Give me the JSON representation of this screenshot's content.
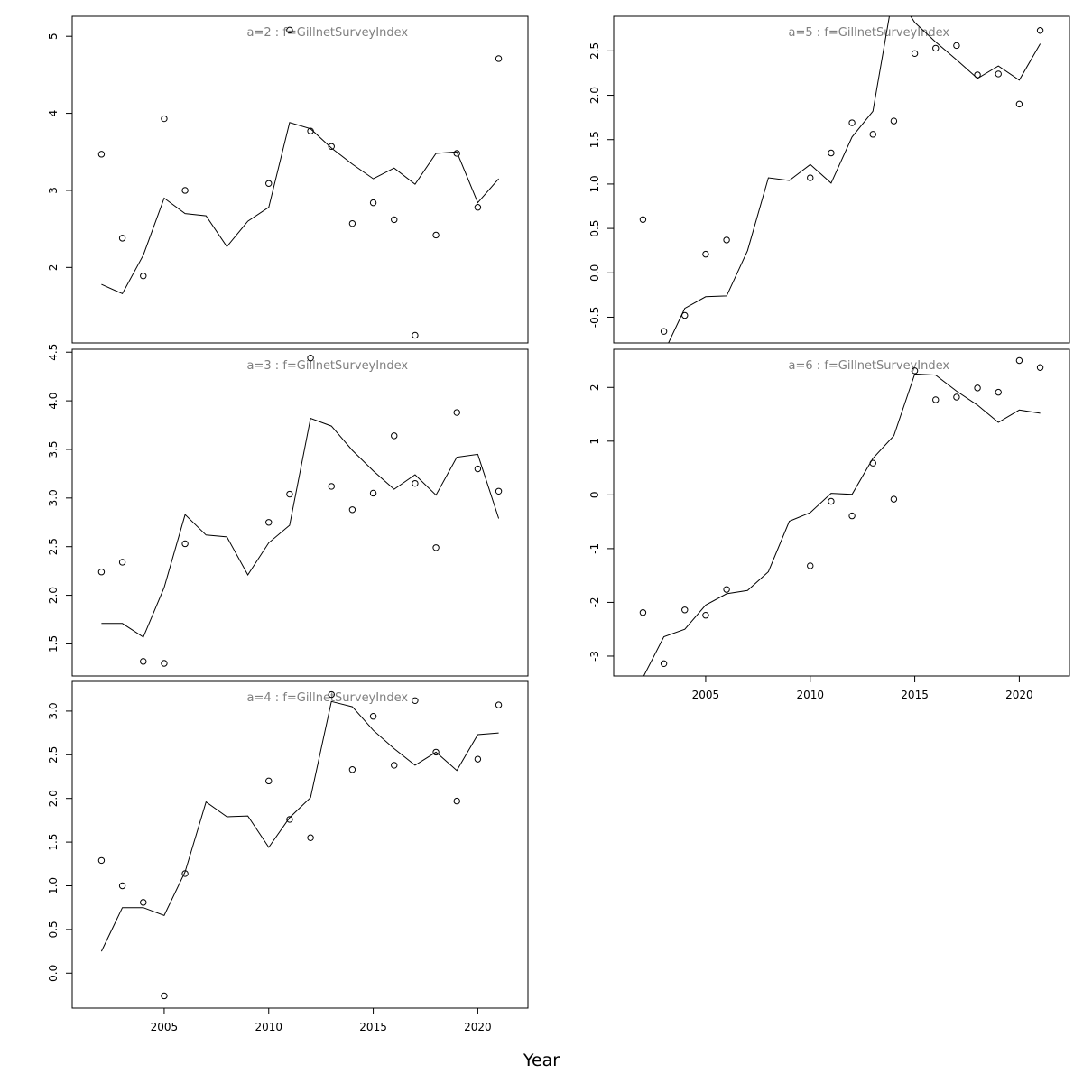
{
  "figure": {
    "xlabel": "Year"
  },
  "chart_data": [
    {
      "type": "scatter",
      "title": "a=2 : f=GillnetSurveyIndex",
      "xlim": [
        2000.6,
        2022.4
      ],
      "ylim": [
        1.02,
        5.26
      ],
      "yticks": [
        2,
        3,
        4,
        5
      ],
      "xticks": [],
      "series": [
        {
          "kind": "points",
          "x": [
            2002,
            2003,
            2004,
            2005,
            2006,
            2010,
            2011,
            2012,
            2013,
            2014,
            2015,
            2016,
            2017,
            2018,
            2019,
            2020,
            2021
          ],
          "y": [
            3.47,
            2.38,
            1.89,
            3.93,
            3.0,
            3.09,
            5.08,
            3.77,
            3.57,
            2.57,
            2.84,
            2.62,
            1.12,
            2.42,
            3.48,
            2.78,
            4.71
          ]
        },
        {
          "kind": "line",
          "x": [
            2002,
            2003,
            2004,
            2005,
            2006,
            2007,
            2008,
            2009,
            2010,
            2011,
            2012,
            2013,
            2014,
            2015,
            2016,
            2017,
            2018,
            2019,
            2020,
            2021
          ],
          "y": [
            1.78,
            1.66,
            2.16,
            2.9,
            2.7,
            2.67,
            2.27,
            2.6,
            2.78,
            3.88,
            3.8,
            3.55,
            3.34,
            3.15,
            3.29,
            3.08,
            3.48,
            3.5,
            2.84,
            3.15
          ]
        }
      ]
    },
    {
      "type": "scatter",
      "title": "a=3 : f=GillnetSurveyIndex",
      "xlim": [
        2000.6,
        2022.4
      ],
      "ylim": [
        1.17,
        4.53
      ],
      "yticks": [
        1.5,
        2.0,
        2.5,
        3.0,
        3.5,
        4.0,
        4.5
      ],
      "xticks": [],
      "series": [
        {
          "kind": "points",
          "x": [
            2002,
            2003,
            2004,
            2005,
            2006,
            2010,
            2011,
            2012,
            2013,
            2014,
            2015,
            2016,
            2017,
            2018,
            2019,
            2020,
            2021
          ],
          "y": [
            2.24,
            2.34,
            1.32,
            1.3,
            2.53,
            2.75,
            3.04,
            4.44,
            3.12,
            2.88,
            3.05,
            3.64,
            3.15,
            2.49,
            3.88,
            3.3,
            3.07
          ]
        },
        {
          "kind": "line",
          "x": [
            2002,
            2003,
            2004,
            2005,
            2006,
            2007,
            2008,
            2009,
            2010,
            2011,
            2012,
            2013,
            2014,
            2015,
            2016,
            2017,
            2018,
            2019,
            2020,
            2021
          ],
          "y": [
            1.71,
            1.71,
            1.57,
            2.08,
            2.83,
            2.62,
            2.6,
            2.21,
            2.54,
            2.72,
            3.82,
            3.74,
            3.49,
            3.28,
            3.09,
            3.24,
            3.03,
            3.42,
            3.45,
            2.79
          ]
        }
      ]
    },
    {
      "type": "scatter",
      "title": "a=4 : f=GillnetSurveyIndex",
      "xlim": [
        2000.6,
        2022.4
      ],
      "ylim": [
        -0.4,
        3.34
      ],
      "yticks": [
        0.0,
        0.5,
        1.0,
        1.5,
        2.0,
        2.5,
        3.0
      ],
      "xticks": [
        2005,
        2010,
        2015,
        2020
      ],
      "series": [
        {
          "kind": "points",
          "x": [
            2002,
            2003,
            2004,
            2005,
            2006,
            2010,
            2011,
            2012,
            2013,
            2014,
            2015,
            2016,
            2017,
            2018,
            2019,
            2020,
            2021
          ],
          "y": [
            1.29,
            1.0,
            0.81,
            -0.26,
            1.14,
            2.2,
            1.76,
            1.55,
            3.19,
            2.33,
            2.94,
            2.38,
            3.12,
            2.53,
            1.97,
            2.45,
            3.07
          ]
        },
        {
          "kind": "line",
          "x": [
            2002,
            2003,
            2004,
            2005,
            2006,
            2007,
            2008,
            2009,
            2010,
            2011,
            2012,
            2013,
            2014,
            2015,
            2016,
            2017,
            2018,
            2019,
            2020,
            2021
          ],
          "y": [
            0.25,
            0.75,
            0.75,
            0.66,
            1.16,
            1.96,
            1.79,
            1.8,
            1.44,
            1.78,
            2.01,
            3.11,
            3.05,
            2.78,
            2.57,
            2.38,
            2.53,
            2.32,
            2.73,
            2.75
          ]
        }
      ]
    },
    {
      "type": "scatter",
      "title": "a=5 : f=GillnetSurveyIndex",
      "xlim": [
        2000.6,
        2022.4
      ],
      "ylim": [
        -0.79,
        2.89
      ],
      "yticks": [
        -0.5,
        0.0,
        0.5,
        1.0,
        1.5,
        2.0,
        2.5
      ],
      "xticks": [],
      "series": [
        {
          "kind": "points",
          "x": [
            2002,
            2003,
            2004,
            2005,
            2006,
            2010,
            2011,
            2012,
            2013,
            2014,
            2015,
            2016,
            2017,
            2018,
            2019,
            2020,
            2021
          ],
          "y": [
            0.6,
            -0.66,
            -0.48,
            0.21,
            0.37,
            1.07,
            1.35,
            1.69,
            1.56,
            1.71,
            2.47,
            2.53,
            2.56,
            2.23,
            2.24,
            1.9,
            2.73
          ]
        },
        {
          "kind": "line",
          "x": [
            2002,
            2003,
            2004,
            2005,
            2006,
            2007,
            2008,
            2009,
            2010,
            2011,
            2012,
            2013,
            2014,
            2015,
            2016,
            2017,
            2018,
            2019,
            2020,
            2021
          ],
          "y": [
            -1.08,
            -0.9,
            -0.4,
            -0.27,
            -0.26,
            0.25,
            1.07,
            1.04,
            1.22,
            1.01,
            1.53,
            1.82,
            3.18,
            2.82,
            2.6,
            2.4,
            2.19,
            2.33,
            2.17,
            2.58
          ]
        }
      ]
    },
    {
      "type": "scatter",
      "title": "a=6 : f=GillnetSurveyIndex",
      "xlim": [
        2000.6,
        2022.4
      ],
      "ylim": [
        -3.37,
        2.71
      ],
      "yticks": [
        -3,
        -2,
        -1,
        0,
        1,
        2
      ],
      "xticks": [
        2005,
        2010,
        2015,
        2020
      ],
      "series": [
        {
          "kind": "points",
          "x": [
            2002,
            2003,
            2004,
            2005,
            2006,
            2010,
            2011,
            2012,
            2013,
            2014,
            2015,
            2016,
            2017,
            2018,
            2019,
            2020,
            2021
          ],
          "y": [
            -2.19,
            -3.14,
            -2.14,
            -2.24,
            -1.76,
            -1.32,
            -0.12,
            -0.39,
            0.59,
            -0.08,
            2.31,
            1.77,
            1.82,
            1.99,
            1.91,
            2.5,
            2.37
          ]
        },
        {
          "kind": "line",
          "x": [
            2002,
            2003,
            2004,
            2005,
            2006,
            2007,
            2008,
            2009,
            2010,
            2011,
            2012,
            2013,
            2014,
            2015,
            2016,
            2017,
            2018,
            2019,
            2020,
            2021
          ],
          "y": [
            -3.4,
            -2.64,
            -2.5,
            -2.05,
            -1.84,
            -1.78,
            -1.43,
            -0.49,
            -0.33,
            0.03,
            0.01,
            0.68,
            1.1,
            2.25,
            2.23,
            1.93,
            1.67,
            1.35,
            1.58,
            1.52
          ]
        }
      ]
    }
  ]
}
